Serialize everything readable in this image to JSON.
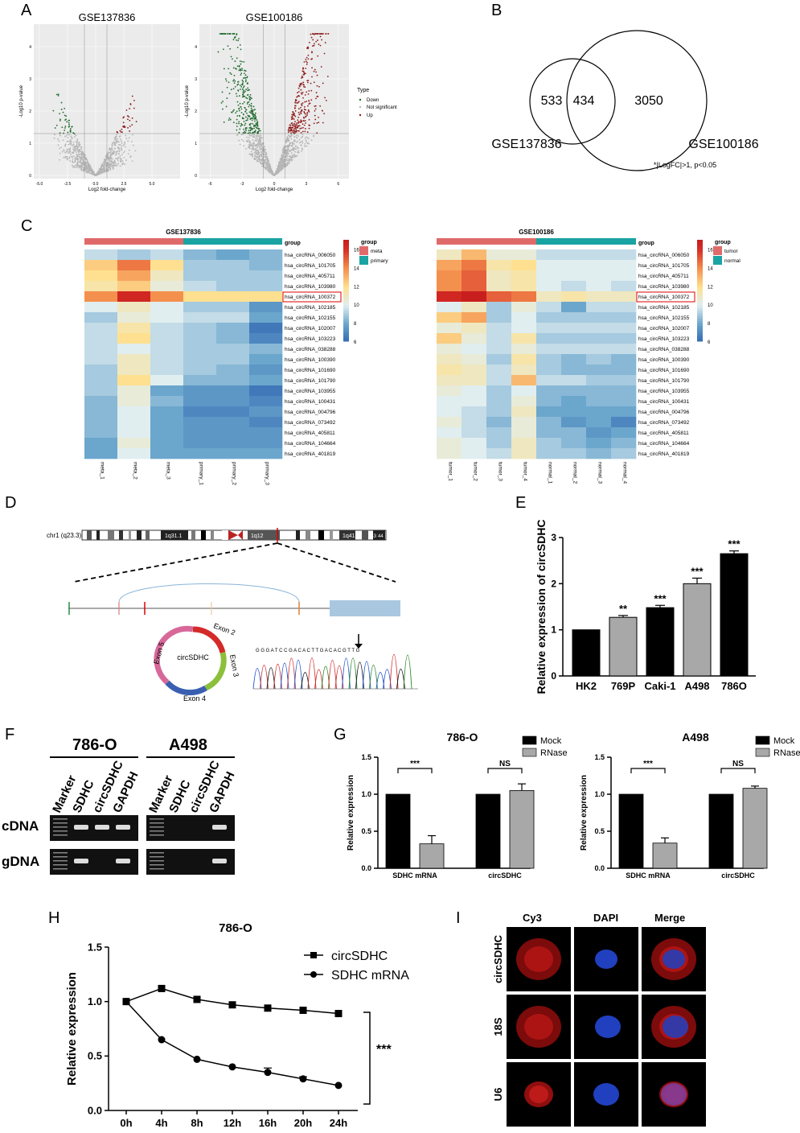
{
  "panels": {
    "A": "A",
    "B": "B",
    "C": "C",
    "D": "D",
    "E": "E",
    "F": "F",
    "G": "G",
    "H": "H",
    "I": "I"
  },
  "volcano": {
    "plots": [
      {
        "title": "GSE137836",
        "xticks": [
          "-5.0",
          "-2.5",
          "0.0",
          "2.5",
          "5.0"
        ],
        "yticks": [
          "0",
          "1",
          "2",
          "3",
          "4"
        ]
      },
      {
        "title": "GSE100186",
        "xticks": [
          "-6",
          "-3",
          "0",
          "3",
          "6"
        ],
        "yticks": [
          "0",
          "1",
          "2",
          "3",
          "4"
        ]
      }
    ],
    "xlabel": "Log2 fold-change",
    "ylabel": "-Log10 p-value",
    "legend": {
      "title": "Type",
      "items": [
        "Down",
        "Not significant",
        "Up"
      ]
    },
    "colors": {
      "down": "#1f6b2e",
      "ns": "#b5b5b5",
      "up": "#8e1b1b"
    }
  },
  "venn": {
    "left_only": "533",
    "overlap": "434",
    "right_only": "3050",
    "left_label": "GSE137836",
    "right_label": "GSE100186",
    "note": "*|LogFC|>1, p<0.05"
  },
  "heatmaps": {
    "rows": [
      "hsa_circRNA_006050",
      "hsa_circRNA_101705",
      "hsa_circRNA_405711",
      "hsa_circRNA_103980",
      "hsa_circRNA_100372",
      "hsa_circRNA_102185",
      "hsa_circRNA_102155",
      "hsa_circRNA_102007",
      "hsa_circRNA_103223",
      "hsa_circRNA_038288",
      "hsa_circRNA_100390",
      "hsa_circRNA_101690",
      "hsa_circRNA_101790",
      "hsa_circRNA_103955",
      "hsa_circRNA_100431",
      "hsa_circRNA_004796",
      "hsa_circRNA_073492",
      "hsa_circRNA_405811",
      "hsa_circRNA_104664",
      "hsa_circRNA_401819"
    ],
    "group_label": "group",
    "scale_ticks": [
      "16",
      "14",
      "12",
      "10",
      "8",
      "6"
    ],
    "left": {
      "title": "GSE137836",
      "columns": [
        "meta_1",
        "meta_2",
        "meta_3",
        "primary_1",
        "primary_2",
        "primary_3"
      ],
      "legend": [
        "meta",
        "primary"
      ],
      "values": [
        [
          9.5,
          9.0,
          9.5,
          8.5,
          8.0,
          8.5
        ],
        [
          12.5,
          14.5,
          12.0,
          9.0,
          9.0,
          8.5
        ],
        [
          12.0,
          13.5,
          11.0,
          9.0,
          9.0,
          9.0
        ],
        [
          11.5,
          12.5,
          10.5,
          9.5,
          9.0,
          9.0
        ],
        [
          14.0,
          16.5,
          14.0,
          12.0,
          12.0,
          12.0
        ],
        [
          10.0,
          11.0,
          10.0,
          9.0,
          9.0,
          7.5
        ],
        [
          9.0,
          10.5,
          10.0,
          9.5,
          9.5,
          8.0
        ],
        [
          9.5,
          11.5,
          9.5,
          9.0,
          8.5,
          6.5
        ],
        [
          9.5,
          12.0,
          9.5,
          9.0,
          8.5,
          7.0
        ],
        [
          9.5,
          10.0,
          9.5,
          9.0,
          9.0,
          8.5
        ],
        [
          9.5,
          11.0,
          9.5,
          9.0,
          9.0,
          8.0
        ],
        [
          9.0,
          11.0,
          9.5,
          9.0,
          8.5,
          7.5
        ],
        [
          9.0,
          12.0,
          10.0,
          8.5,
          8.5,
          8.0
        ],
        [
          9.0,
          10.5,
          8.0,
          7.5,
          7.5,
          6.5
        ],
        [
          8.5,
          10.5,
          8.5,
          7.5,
          7.5,
          7.0
        ],
        [
          8.5,
          10.0,
          8.0,
          7.0,
          7.0,
          7.5
        ],
        [
          8.5,
          10.0,
          8.0,
          7.5,
          7.5,
          7.0
        ],
        [
          8.5,
          10.0,
          8.0,
          7.5,
          7.5,
          7.5
        ],
        [
          8.0,
          10.5,
          8.0,
          7.5,
          7.5,
          7.5
        ],
        [
          8.0,
          10.0,
          8.0,
          8.0,
          8.0,
          8.0
        ]
      ],
      "highlight_row": "hsa_circRNA_100372"
    },
    "right": {
      "title": "GSE100186",
      "columns": [
        "tumor_1",
        "tumor_2",
        "tumor_3",
        "tumor_4",
        "normal_1",
        "normal_2",
        "normal_3",
        "normal_4"
      ],
      "legend": [
        "tumor",
        "normal"
      ],
      "values": [
        [
          11.0,
          13.0,
          10.5,
          10.5,
          9.5,
          9.5,
          9.5,
          9.5
        ],
        [
          13.5,
          14.5,
          11.5,
          12.0,
          10.0,
          10.0,
          10.0,
          10.0
        ],
        [
          14.0,
          15.0,
          11.0,
          11.5,
          10.0,
          10.0,
          10.0,
          10.0
        ],
        [
          14.0,
          15.0,
          11.0,
          11.5,
          10.0,
          9.5,
          10.0,
          9.5
        ],
        [
          16.5,
          17.0,
          15.0,
          14.5,
          11.0,
          11.5,
          11.0,
          11.0
        ],
        [
          10.0,
          11.0,
          9.0,
          10.5,
          9.5,
          8.0,
          9.5,
          9.5
        ],
        [
          12.5,
          13.5,
          9.0,
          10.0,
          9.0,
          9.0,
          9.0,
          9.0
        ],
        [
          10.5,
          11.0,
          9.5,
          10.0,
          9.5,
          9.5,
          9.5,
          9.5
        ],
        [
          12.5,
          10.5,
          9.5,
          11.5,
          9.0,
          9.0,
          9.0,
          9.0
        ],
        [
          10.5,
          10.0,
          9.5,
          10.5,
          9.5,
          9.5,
          9.5,
          9.5
        ],
        [
          11.0,
          10.5,
          9.0,
          11.5,
          9.0,
          8.5,
          9.0,
          8.5
        ],
        [
          11.5,
          11.0,
          9.5,
          11.0,
          9.0,
          8.5,
          8.5,
          8.5
        ],
        [
          11.0,
          11.0,
          9.5,
          13.0,
          9.5,
          9.5,
          9.0,
          9.0
        ],
        [
          10.5,
          10.0,
          9.0,
          10.0,
          8.5,
          8.5,
          8.5,
          8.5
        ],
        [
          10.0,
          10.0,
          9.0,
          10.5,
          8.5,
          8.0,
          8.5,
          8.5
        ],
        [
          10.0,
          9.5,
          9.0,
          11.0,
          8.0,
          8.0,
          8.0,
          8.0
        ],
        [
          10.5,
          9.5,
          8.5,
          10.5,
          8.5,
          7.5,
          8.0,
          7.0
        ],
        [
          10.0,
          9.5,
          9.0,
          10.5,
          8.5,
          8.5,
          7.5,
          8.0
        ],
        [
          10.5,
          10.0,
          9.0,
          11.0,
          9.0,
          8.5,
          8.0,
          8.5
        ],
        [
          10.5,
          10.0,
          9.5,
          11.0,
          9.0,
          9.0,
          8.5,
          9.0
        ]
      ],
      "highlight_row": "hsa_circRNA_100372"
    }
  },
  "gene": {
    "chrom_label": "chr1 (q23.3)",
    "bands": [
      "1q31.1",
      "1q12",
      "1q41",
      "q43",
      "44"
    ],
    "circ_label": "circSDHC",
    "exons": [
      "Exon 2",
      "Exon 3",
      "Exon 4",
      "Exon 5"
    ],
    "sequence": "G G G A T C C G A C A C T T G A C A C G T T G"
  },
  "chart_data": [
    {
      "panel": "E",
      "type": "bar",
      "categories": [
        "HK2",
        "769P",
        "Caki-1",
        "A498",
        "786O"
      ],
      "values": [
        1.0,
        1.27,
        1.48,
        2.0,
        2.65
      ],
      "errors": [
        0,
        0.04,
        0.05,
        0.12,
        0.06
      ],
      "significance": [
        "",
        "**",
        "***",
        "***",
        "***"
      ],
      "colors": [
        "#000000",
        "#a8a8a8",
        "#000000",
        "#a8a8a8",
        "#000000"
      ],
      "ylabel": "Relative expression of circSDHC",
      "ylim": [
        0,
        3
      ],
      "yticks": [
        "0",
        "1",
        "2",
        "3"
      ]
    },
    {
      "panel": "G",
      "type": "bar",
      "title": "786-O",
      "categories": [
        "SDHC mRNA",
        "circSDHC"
      ],
      "series": [
        {
          "name": "Mock",
          "values": [
            1.0,
            1.0
          ],
          "errors": [
            0,
            0
          ]
        },
        {
          "name": "RNase",
          "values": [
            0.33,
            1.05
          ],
          "errors": [
            0.11,
            0.09
          ]
        }
      ],
      "significance": [
        "***",
        "NS"
      ],
      "ylabel": "Relative expression",
      "ylim": [
        0,
        1.5
      ],
      "yticks": [
        "0.0",
        "0.5",
        "1.0",
        "1.5"
      ]
    },
    {
      "panel": "G",
      "type": "bar",
      "title": "A498",
      "categories": [
        "SDHC mRNA",
        "circSDHC"
      ],
      "series": [
        {
          "name": "Mock",
          "values": [
            1.0,
            1.0
          ],
          "errors": [
            0,
            0
          ]
        },
        {
          "name": "RNase",
          "values": [
            0.34,
            1.08
          ],
          "errors": [
            0.07,
            0.03
          ]
        }
      ],
      "significance": [
        "***",
        "NS"
      ],
      "ylabel": "Relative expression",
      "ylim": [
        0,
        1.5
      ],
      "yticks": [
        "0.0",
        "0.5",
        "1.0",
        "1.5"
      ]
    },
    {
      "panel": "H",
      "type": "line",
      "title": "786-O",
      "x": [
        "0h",
        "4h",
        "8h",
        "12h",
        "16h",
        "20h",
        "24h"
      ],
      "series": [
        {
          "name": "circSDHC",
          "values": [
            1.0,
            1.12,
            1.02,
            0.97,
            0.94,
            0.92,
            0.89
          ],
          "marker": "square"
        },
        {
          "name": "SDHC mRNA",
          "values": [
            1.0,
            0.65,
            0.47,
            0.4,
            0.35,
            0.29,
            0.23
          ],
          "errors": [
            0,
            0,
            0,
            0,
            0.04,
            0.02,
            0
          ],
          "marker": "circle"
        }
      ],
      "significance": "***",
      "ylabel": "Relative expression",
      "ylim": [
        0,
        1.5
      ],
      "yticks": [
        "0.0",
        "0.5",
        "1.0",
        "1.5"
      ]
    }
  ],
  "gel": {
    "cell_lines": [
      "786-O",
      "A498"
    ],
    "lanes": [
      "Marker",
      "SDHC",
      "circSDHC",
      "GAPDH"
    ],
    "rows": [
      "cDNA",
      "gDNA"
    ]
  },
  "fish": {
    "columns": [
      "Cy3",
      "DAPI",
      "Merge"
    ],
    "rows": [
      "circSDHC",
      "18S",
      "U6"
    ]
  }
}
